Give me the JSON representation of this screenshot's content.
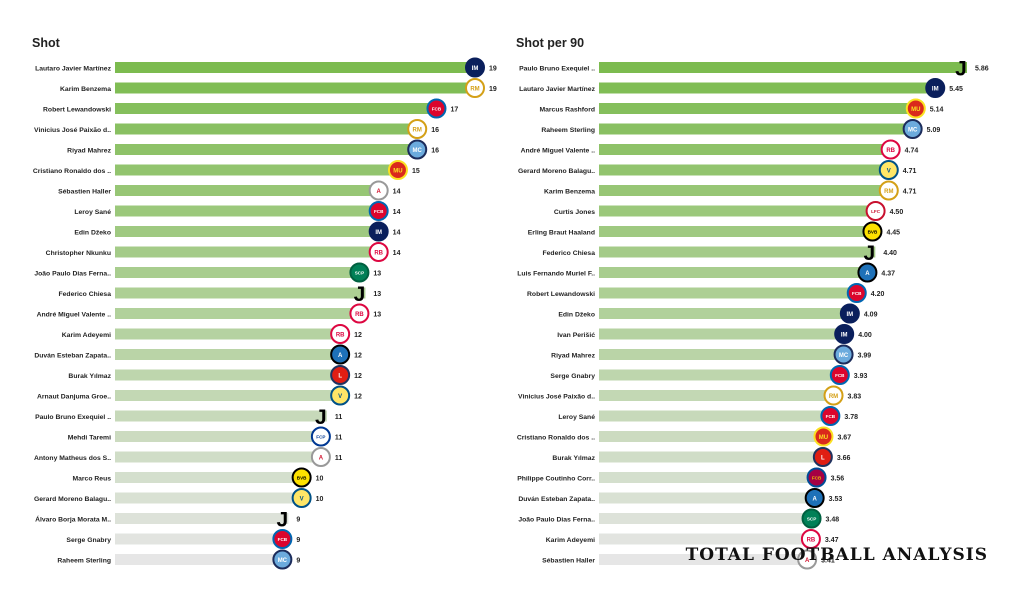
{
  "chart_data": [
    {
      "type": "bar",
      "orientation": "horizontal",
      "title": "Shot",
      "categories": [
        "Lautaro Javier Martínez",
        "Karim Benzema",
        "Robert Lewandowski",
        "Vinicius José Paixão d..",
        "Riyad Mahrez",
        "Cristiano Ronaldo dos ..",
        "Sébastien Haller",
        "Leroy Sané",
        "Edin Džeko",
        "Christopher Nkunku",
        "João Paulo Dias Ferna..",
        "Federico Chiesa",
        "André Miguel Valente ..",
        "Karim Adeyemi",
        "Duván Esteban Zapata..",
        "Burak Yılmaz",
        "Arnaut Danjuma Groe..",
        "Paulo Bruno Exequiel ..",
        "Mehdi Taremi",
        "Antony Matheus dos S..",
        "Marco Reus",
        "Gerard Moreno Balagu..",
        "Álvaro Borja Morata M..",
        "Serge  Gnabry",
        "Raheem Sterling"
      ],
      "values": [
        19,
        19,
        17,
        16,
        16,
        15,
        14,
        14,
        14,
        14,
        13,
        13,
        13,
        12,
        12,
        12,
        12,
        11,
        11,
        11,
        10,
        10,
        9,
        9,
        9
      ],
      "value_labels": [
        "19",
        "19",
        "17",
        "16",
        "16",
        "15",
        "14",
        "14",
        "14",
        "14",
        "13",
        "13",
        "13",
        "12",
        "12",
        "12",
        "12",
        "11",
        "11",
        "11",
        "10",
        "10",
        "9",
        "9",
        "9"
      ],
      "club_icons": [
        "inter-icon",
        "real-madrid-icon",
        "bayern-icon",
        "real-madrid-icon",
        "man-city-icon",
        "man-united-icon",
        "ajax-icon",
        "bayern-icon",
        "inter-icon",
        "leipzig-icon",
        "sporting-icon",
        "juventus-icon",
        "leipzig-icon",
        "salzburg-icon",
        "atalanta-icon",
        "lille-icon",
        "villarreal-icon",
        "juventus-icon",
        "porto-icon",
        "ajax-icon",
        "dortmund-icon",
        "villarreal-icon",
        "juventus-icon",
        "bayern-icon",
        "man-city-icon"
      ],
      "xlim": [
        0,
        19
      ],
      "grid": false
    },
    {
      "type": "bar",
      "orientation": "horizontal",
      "title": "Shot per 90",
      "categories": [
        "Paulo Bruno Exequiel ..",
        "Lautaro Javier Martínez",
        "Marcus Rashford",
        "Raheem Sterling",
        "André Miguel Valente ..",
        "Gerard Moreno Balagu..",
        "Karim Benzema",
        "Curtis Jones",
        "Erling Braut Haaland",
        "Federico Chiesa",
        "Luis Fernando Muriel F..",
        "Robert Lewandowski",
        "Edin Džeko",
        "Ivan Perišić",
        "Riyad Mahrez",
        "Serge  Gnabry",
        "Vinicius José Paixão d..",
        "Leroy Sané",
        "Cristiano Ronaldo dos ..",
        "Burak Yılmaz",
        "Philippe Coutinho Corr..",
        "Duván Esteban Zapata..",
        "João Paulo Dias Ferna..",
        "Karim Adeyemi",
        "Sébastien Haller"
      ],
      "values": [
        5.86,
        5.45,
        5.14,
        5.09,
        4.74,
        4.71,
        4.71,
        4.5,
        4.45,
        4.4,
        4.37,
        4.2,
        4.09,
        4.0,
        3.99,
        3.93,
        3.83,
        3.78,
        3.67,
        3.66,
        3.56,
        3.53,
        3.48,
        3.47,
        3.41
      ],
      "value_labels": [
        "5.86",
        "5.45",
        "5.14",
        "5.09",
        "4.74",
        "4.71",
        "4.71",
        "4.50",
        "4.45",
        "4.40",
        "4.37",
        "4.20",
        "4.09",
        "4.00",
        "3.99",
        "3.93",
        "3.83",
        "3.78",
        "3.67",
        "3.66",
        "3.56",
        "3.53",
        "3.48",
        "3.47",
        "3.41"
      ],
      "club_icons": [
        "juventus-icon",
        "inter-icon",
        "man-united-icon",
        "man-city-icon",
        "leipzig-icon",
        "villarreal-icon",
        "real-madrid-icon",
        "liverpool-icon",
        "dortmund-icon",
        "juventus-icon",
        "atalanta-icon",
        "bayern-icon",
        "inter-icon",
        "inter-icon",
        "man-city-icon",
        "bayern-icon",
        "real-madrid-icon",
        "bayern-icon",
        "man-united-icon",
        "lille-icon",
        "barcelona-icon",
        "atalanta-icon",
        "sporting-icon",
        "salzburg-icon",
        "ajax-icon"
      ],
      "xlim": [
        0,
        5.86
      ],
      "grid": false
    }
  ],
  "colors": {
    "bar_top": "#7cbb4f",
    "bar_bottom": "#e6e6e6",
    "label": "#222222"
  },
  "watermark": "TOTAL FOOTBALL ANALYSIS"
}
